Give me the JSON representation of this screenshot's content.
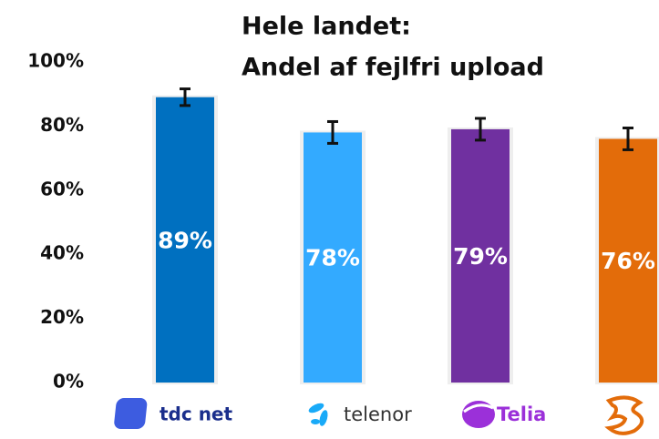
{
  "chart_data": {
    "type": "bar",
    "title": "Hele landet:",
    "subtitle": "Andel af fejlfri upload",
    "categories": [
      "tdc net",
      "telenor",
      "Telia",
      null
    ],
    "values": [
      89,
      78,
      79,
      76
    ],
    "value_labels": [
      "89%",
      "78%",
      "79%",
      "76%"
    ],
    "errors": [
      2.6,
      3.4,
      3.4,
      3.4
    ],
    "colors": [
      "#0070c0",
      "#33aaff",
      "#7030a0",
      "#e36c0a"
    ],
    "ylim": [
      0,
      100
    ],
    "yticks": [
      {
        "value": 0,
        "label": "0%"
      },
      {
        "value": 20,
        "label": "20%"
      },
      {
        "value": 40,
        "label": "40%"
      },
      {
        "value": 60,
        "label": "60%"
      },
      {
        "value": 80,
        "label": "80%"
      },
      {
        "value": 100,
        "label": "100%"
      }
    ],
    "grid": false
  }
}
